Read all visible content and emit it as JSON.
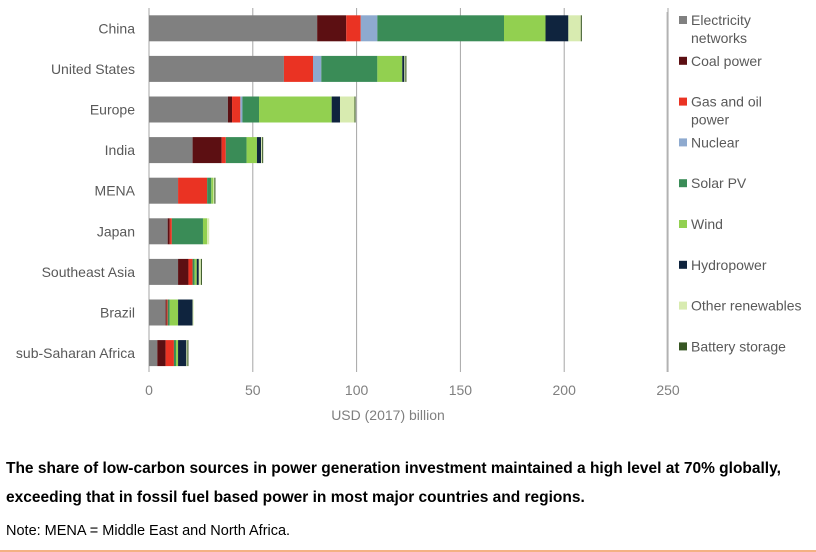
{
  "chart_data": {
    "type": "bar",
    "orientation": "horizontal",
    "stacked": true,
    "categories": [
      "China",
      "United States",
      "Europe",
      "India",
      "MENA",
      "Japan",
      "Southeast Asia",
      "Brazil",
      "sub-Saharan Africa"
    ],
    "xlabel": "USD (2017) billion",
    "xlim": [
      0,
      250
    ],
    "xticks": [
      0,
      50,
      100,
      150,
      200,
      250
    ],
    "grid": true,
    "legend_position": "right",
    "series": [
      {
        "name": "Electricity\nnetworks",
        "color": "#808080",
        "values": [
          81,
          65,
          38,
          21,
          14,
          9,
          14,
          8,
          4
        ]
      },
      {
        "name": "Coal power",
        "color": "#5c0f12",
        "values": [
          14,
          0,
          2,
          14,
          0,
          1,
          5,
          0.5,
          4
        ]
      },
      {
        "name": "Gas and oil\npower",
        "color": "#ea3323",
        "values": [
          7,
          14,
          4,
          2,
          14,
          1,
          2,
          0.5,
          4
        ]
      },
      {
        "name": "Nuclear",
        "color": "#8eaacf",
        "values": [
          8,
          4,
          1,
          0,
          0,
          0,
          0,
          0,
          0
        ]
      },
      {
        "name": "Solar PV",
        "color": "#3a8c57",
        "values": [
          61,
          27,
          8,
          10,
          2,
          15,
          1,
          1,
          1
        ]
      },
      {
        "name": "Wind",
        "color": "#92d050",
        "values": [
          20,
          12,
          35,
          5,
          1,
          2,
          1,
          4,
          1
        ]
      },
      {
        "name": "Hydropower",
        "color": "#0f243e",
        "values": [
          11,
          1,
          4,
          2,
          0,
          0,
          1,
          7,
          4
        ]
      },
      {
        "name": "Other renewables",
        "color": "#d8ebb0",
        "values": [
          6,
          0.5,
          7,
          0.5,
          0.5,
          1,
          1,
          0.5,
          0.5
        ]
      },
      {
        "name": "Battery storage",
        "color": "#375623",
        "values": [
          0.5,
          0.5,
          0.5,
          0.5,
          0.5,
          0,
          0.5,
          0,
          0.5
        ]
      }
    ]
  },
  "caption": "The share of low-carbon sources in power generation investment maintained a high level at 70% globally, exceeding that in fossil fuel based power in most major countries and regions.",
  "note": "Note: MENA = Middle East and North Africa."
}
